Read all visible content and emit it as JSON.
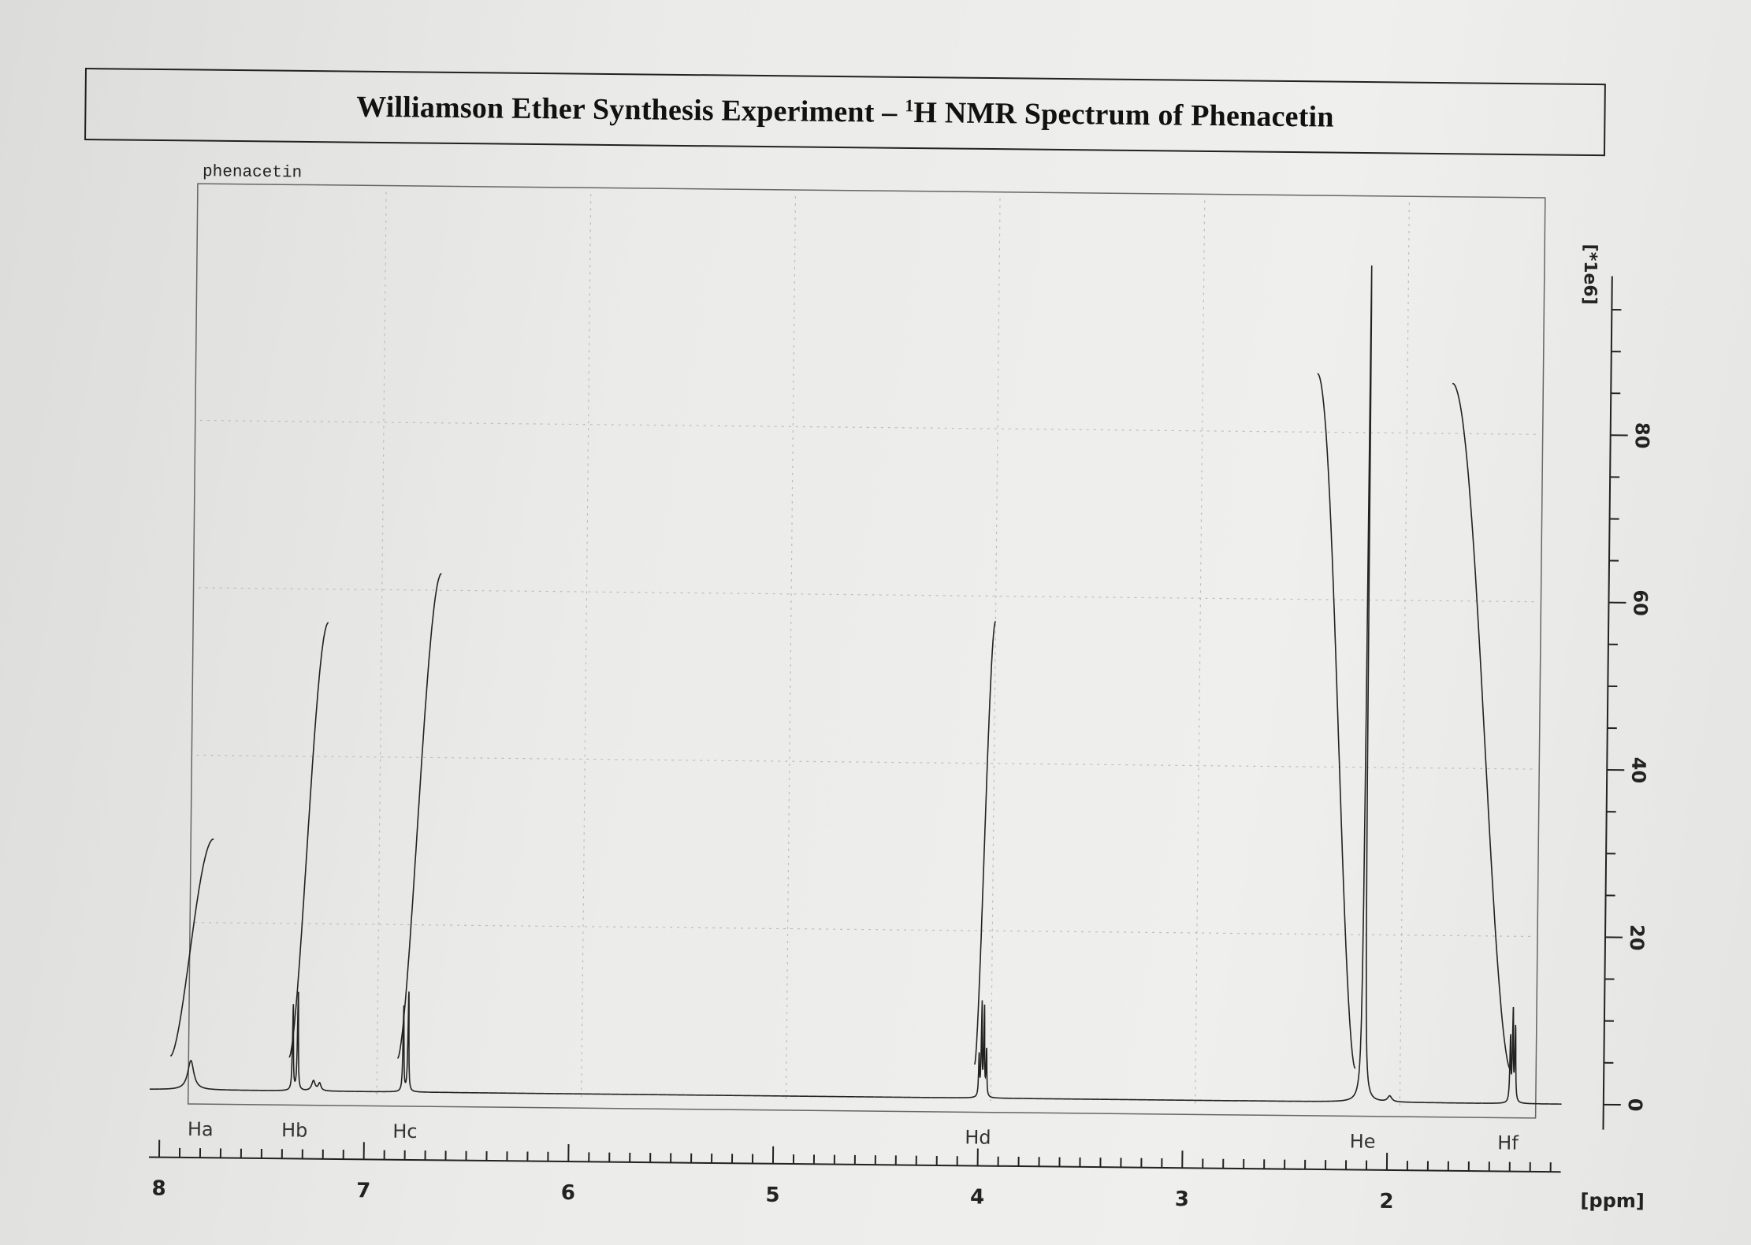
{
  "title": {
    "main": "Williamson Ether Synthesis Experiment – ",
    "superscript": "1",
    "rest": "H NMR Spectrum of Phenacetin"
  },
  "chart_data": {
    "type": "line",
    "plot_label": "phenacetin",
    "xlabel": "[ppm]",
    "ylabel": "[*1e6]",
    "xlim": [
      8.0,
      1.2
    ],
    "ylim": [
      0,
      100
    ],
    "x_ticks": [
      8,
      7,
      6,
      5,
      4,
      3,
      2
    ],
    "y_ticks": [
      0,
      20,
      40,
      60,
      80
    ],
    "peaks": [
      {
        "label": "Ha",
        "shift": 7.85,
        "multiplicity": "broad",
        "height": 3.5
      },
      {
        "label": "Hb",
        "shift": 7.34,
        "multiplicity": "doublet",
        "height": 12
      },
      {
        "label": "Hc",
        "shift": 6.8,
        "multiplicity": "doublet",
        "height": 12
      },
      {
        "label": "Hd",
        "shift": 3.98,
        "multiplicity": "quartet",
        "height": 11
      },
      {
        "label": "He",
        "shift": 2.12,
        "multiplicity": "singlet",
        "height": 100
      },
      {
        "label": "Hf",
        "shift": 1.39,
        "multiplicity": "triplet",
        "height": 11
      }
    ],
    "integrals": [
      {
        "x_start": 7.95,
        "x_end": 7.75,
        "y_start": 4,
        "y_end": 30
      },
      {
        "x_start": 7.37,
        "x_end": 7.2,
        "y_start": 4,
        "y_end": 56
      },
      {
        "x_start": 6.84,
        "x_end": 6.65,
        "y_start": 4,
        "y_end": 62
      },
      {
        "x_start": 4.02,
        "x_end": 3.94,
        "y_start": 4,
        "y_end": 57
      },
      {
        "x_start": 2.16,
        "x_end": 2.38,
        "y_start": 4,
        "y_end": 87
      },
      {
        "x_start": 1.4,
        "x_end": 1.72,
        "y_start": 4,
        "y_end": 86
      }
    ],
    "grid": true
  }
}
